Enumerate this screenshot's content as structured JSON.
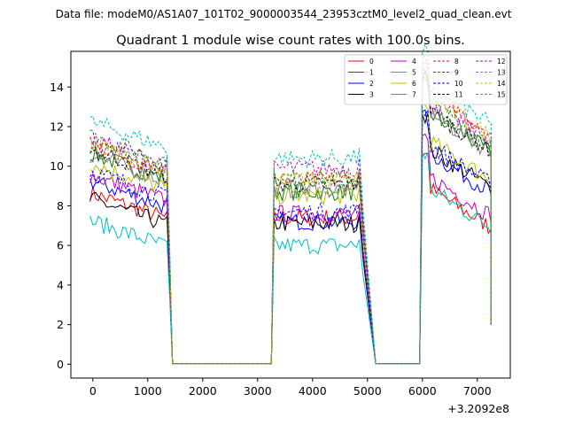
{
  "chart_data": {
    "type": "line",
    "suptitle": "Data file: modeM0/AS1A07_101T02_9000003544_23953cztM0_level2_quad_clean.evt",
    "title": "Quadrant 1 module wise count rates with 100.0s bins.",
    "xlabel": "",
    "ylabel": "",
    "x_offset_label": "+3.2092e8",
    "xlim": [
      -400,
      7600
    ],
    "ylim": [
      -0.7,
      15.8
    ],
    "xticks": [
      0,
      1000,
      2000,
      3000,
      4000,
      5000,
      6000,
      7000
    ],
    "yticks": [
      0,
      2,
      4,
      6,
      8,
      10,
      12,
      14
    ],
    "legend_position": "top-right",
    "segments": [
      {
        "start": -50,
        "end": 1350,
        "drop_to": 1450
      },
      {
        "start": 3300,
        "end": 4800,
        "rise_from": 3250,
        "drop_to": 5150
      },
      {
        "start": 6000,
        "end": 7250,
        "rise_from": 5950
      }
    ],
    "gap_value": 0.02,
    "series": [
      {
        "name": "0",
        "color": "#ff0000",
        "dash": false,
        "levels": [
          8.0,
          7.4,
          8.0
        ]
      },
      {
        "name": "1",
        "color": "#008000",
        "dash": false,
        "levels": [
          10.0,
          8.7,
          11.8
        ]
      },
      {
        "name": "2",
        "color": "#0000ff",
        "dash": false,
        "levels": [
          8.6,
          7.2,
          9.8
        ]
      },
      {
        "name": "3",
        "color": "#000000",
        "dash": false,
        "levels": [
          7.7,
          7.1,
          10.0
        ]
      },
      {
        "name": "4",
        "color": "#bf00bf",
        "dash": false,
        "levels": [
          8.9,
          7.6,
          8.6
        ]
      },
      {
        "name": "5",
        "color": "#00bfbf",
        "dash": false,
        "levels": [
          6.6,
          6.0,
          8.0
        ]
      },
      {
        "name": "6",
        "color": "#bfbf00",
        "dash": false,
        "levels": [
          9.5,
          8.5,
          10.4
        ]
      },
      {
        "name": "7",
        "color": "#7f7f7f",
        "dash": false,
        "levels": [
          9.9,
          8.8,
          11.8
        ]
      },
      {
        "name": "8",
        "color": "#ff0000",
        "dash": true,
        "levels": [
          10.4,
          9.3,
          12.8
        ]
      },
      {
        "name": "9",
        "color": "#008000",
        "dash": true,
        "levels": [
          10.9,
          9.4,
          12.2
        ]
      },
      {
        "name": "10",
        "color": "#0000ff",
        "dash": true,
        "levels": [
          9.1,
          7.7,
          10.2
        ]
      },
      {
        "name": "11",
        "color": "#000000",
        "dash": true,
        "levels": [
          10.2,
          9.1,
          11.9
        ]
      },
      {
        "name": "12",
        "color": "#bf00bf",
        "dash": true,
        "levels": [
          10.7,
          9.9,
          12.4
        ]
      },
      {
        "name": "13",
        "color": "#00bfbf",
        "dash": true,
        "levels": [
          11.6,
          10.4,
          13.2
        ]
      },
      {
        "name": "14",
        "color": "#bfbf00",
        "dash": true,
        "levels": [
          10.5,
          9.3,
          12.6
        ]
      },
      {
        "name": "15",
        "color": "#7f7f7f",
        "dash": true,
        "levels": [
          10.4,
          9.0,
          11.9
        ]
      }
    ]
  }
}
